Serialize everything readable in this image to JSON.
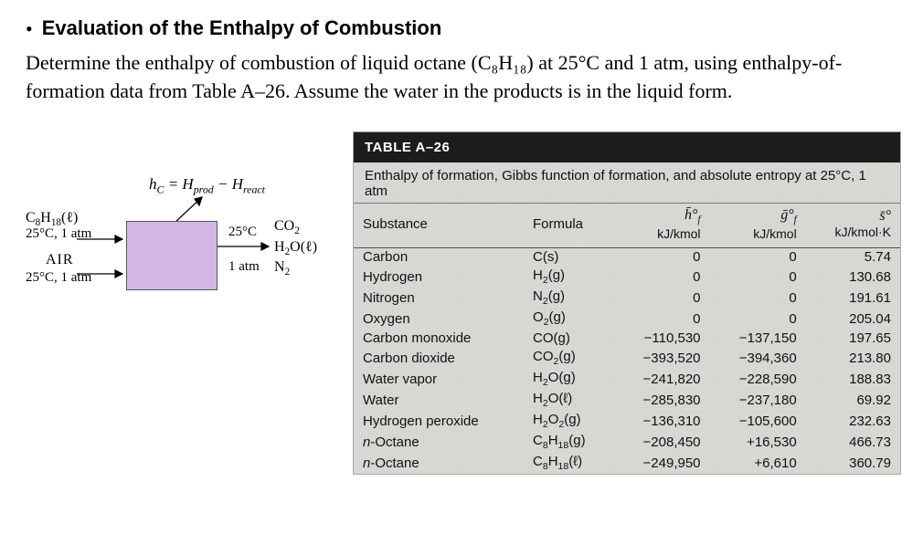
{
  "heading": {
    "bullet": "•",
    "title": "Evaluation of the Enthalpy of Combustion"
  },
  "paragraph": "Determine the enthalpy of combustion of liquid octane (C₈H₁₈) at 25°C and 1 atm, using enthalpy-of-formation data from Table A–26. Assume the water in the products is in the liquid form.",
  "diagram": {
    "equation": "h꜀ = Hₚᵣₒ𝒹 − Hᵣₑₐ𝚌ₜ",
    "equation_html": "<i>h<sub>C</sub></i> = <i>H</i><sub>prod</sub> − <i>H</i><sub>react</sub>",
    "fuel_label": "C₈H₁₈(ℓ)",
    "fuel_label_html": "C<sub>8</sub>H<sub>18</sub>(ℓ)",
    "fuel_state": "25°C, 1 atm",
    "air_label": "AIR",
    "air_state": "25°C, 1 atm",
    "out_temp": "25°C",
    "out_press": "1 atm",
    "out_products": [
      "CO₂",
      "H₂O(ℓ)",
      "N₂"
    ],
    "out_products_html": [
      "CO<sub>2</sub>",
      "H<sub>2</sub>O(ℓ)",
      "N<sub>2</sub>"
    ],
    "box_fill": "#d3b8e6"
  },
  "table": {
    "title": "TABLE A–26",
    "caption": "Enthalpy of formation, Gibbs function of formation, and absolute entropy at 25°C, 1 atm",
    "columns": {
      "substance": "Substance",
      "formula": "Formula",
      "hf_sym": "h̄°𝒻",
      "hf_sym_html": "<i>h̄°<sub>f</sub></i>",
      "hf_unit": "kJ/kmol",
      "gf_sym": "ḡ°𝒻",
      "gf_sym_html": "<i>ḡ°<sub>f</sub></i>",
      "gf_unit": "kJ/kmol",
      "s_sym": "s̄°",
      "s_sym_html": "<i>s̄°</i>",
      "s_unit": "kJ/kmol·K"
    },
    "rows": [
      {
        "name": "Carbon",
        "name_html": "Carbon",
        "formula": "C(s)",
        "formula_html": "C(s)",
        "hf": "0",
        "gf": "0",
        "s": "5.74"
      },
      {
        "name": "Hydrogen",
        "name_html": "Hydrogen",
        "formula": "H₂(g)",
        "formula_html": "H<sub>2</sub>(g)",
        "hf": "0",
        "gf": "0",
        "s": "130.68"
      },
      {
        "name": "Nitrogen",
        "name_html": "Nitrogen",
        "formula": "N₂(g)",
        "formula_html": "N<sub>2</sub>(g)",
        "hf": "0",
        "gf": "0",
        "s": "191.61"
      },
      {
        "name": "Oxygen",
        "name_html": "Oxygen",
        "formula": "O₂(g)",
        "formula_html": "O<sub>2</sub>(g)",
        "hf": "0",
        "gf": "0",
        "s": "205.04"
      },
      {
        "name": "Carbon monoxide",
        "name_html": "Carbon monoxide",
        "formula": "CO(g)",
        "formula_html": "CO(g)",
        "hf": "−110,530",
        "gf": "−137,150",
        "s": "197.65"
      },
      {
        "name": "Carbon dioxide",
        "name_html": "Carbon dioxide",
        "formula": "CO₂(g)",
        "formula_html": "CO<sub>2</sub>(g)",
        "hf": "−393,520",
        "gf": "−394,360",
        "s": "213.80"
      },
      {
        "name": "Water vapor",
        "name_html": "Water vapor",
        "formula": "H₂O(g)",
        "formula_html": "H<sub>2</sub>O(g)",
        "hf": "−241,820",
        "gf": "−228,590",
        "s": "188.83"
      },
      {
        "name": "Water",
        "name_html": "Water",
        "formula": "H₂O(ℓ)",
        "formula_html": "H<sub>2</sub>O(ℓ)",
        "hf": "−285,830",
        "gf": "−237,180",
        "s": "69.92"
      },
      {
        "name": "Hydrogen peroxide",
        "name_html": "Hydrogen peroxide",
        "formula": "H₂O₂(g)",
        "formula_html": "H<sub>2</sub>O<sub>2</sub>(g)",
        "hf": "−136,310",
        "gf": "−105,600",
        "s": "232.63"
      },
      {
        "name": "n-Octane",
        "name_html": "<span class=\"ital\">n</span>-Octane",
        "formula": "C₈H₁₈(g)",
        "formula_html": "C<sub>8</sub>H<sub>18</sub>(g)",
        "hf": "−208,450",
        "gf": "+16,530",
        "s": "466.73"
      },
      {
        "name": "n-Octane",
        "name_html": "<span class=\"ital\">n</span>-Octane",
        "formula": "C₈H₁₈(ℓ)",
        "formula_html": "C<sub>8</sub>H<sub>18</sub>(ℓ)",
        "hf": "−249,950",
        "gf": "+6,610",
        "s": "360.79"
      }
    ],
    "col_align": [
      "left",
      "left",
      "right",
      "right",
      "right"
    ],
    "header_bg": "#1c1c1c",
    "body_bg": "#dcdbd7"
  }
}
